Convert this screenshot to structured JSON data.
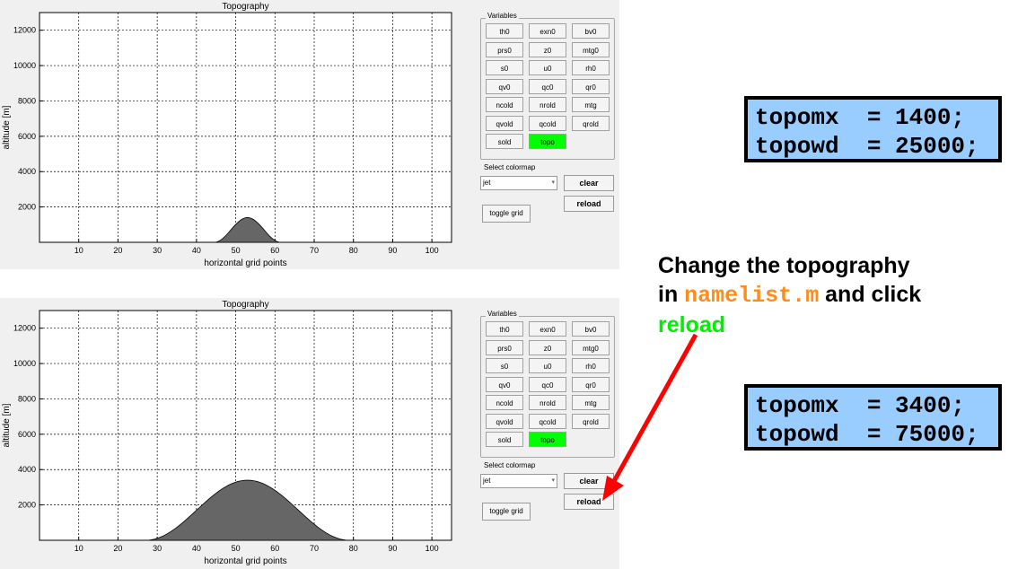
{
  "panels": [
    {
      "id": "before",
      "plot": {
        "title": "Topography",
        "xlabel": "horizontal grid points",
        "ylabel": "altitude [m]",
        "xticks": [
          10,
          20,
          30,
          40,
          50,
          60,
          70,
          80,
          90,
          100
        ],
        "yticks": [
          2000,
          4000,
          6000,
          8000,
          10000,
          12000
        ],
        "grid": true
      },
      "variables_title": "Variables",
      "variables": [
        [
          "th0",
          "exn0",
          "bv0"
        ],
        [
          "prs0",
          "z0",
          "mtg0"
        ],
        [
          "s0",
          "u0",
          "rh0"
        ],
        [
          "qv0",
          "qc0",
          "qr0"
        ],
        [
          "ncold",
          "nrold",
          "mtg"
        ],
        [
          "qvold",
          "qcold",
          "qrold"
        ],
        [
          "sold",
          "topo"
        ]
      ],
      "active_variable": "topo",
      "colormap_label": "Select colormap",
      "colormap_value": "jet",
      "clear_label": "clear",
      "reload_label": "reload",
      "toggle_label": "toggle grid"
    },
    {
      "id": "after",
      "plot": {
        "title": "Topography",
        "xlabel": "horizontal grid points",
        "ylabel": "altitude [m]",
        "xticks": [
          10,
          20,
          30,
          40,
          50,
          60,
          70,
          80,
          90,
          100
        ],
        "yticks": [
          2000,
          4000,
          6000,
          8000,
          10000,
          12000
        ],
        "grid": true
      },
      "variables_title": "Variables",
      "variables": [
        [
          "th0",
          "exn0",
          "bv0"
        ],
        [
          "prs0",
          "z0",
          "mtg0"
        ],
        [
          "s0",
          "u0",
          "rh0"
        ],
        [
          "qv0",
          "qc0",
          "qr0"
        ],
        [
          "ncold",
          "nrold",
          "mtg"
        ],
        [
          "qvold",
          "qcold",
          "qrold"
        ],
        [
          "sold",
          "topo"
        ]
      ],
      "active_variable": "topo",
      "colormap_label": "Select colormap",
      "colormap_value": "jet",
      "clear_label": "clear",
      "reload_label": "reload",
      "toggle_label": "toggle grid"
    }
  ],
  "chart_data": [
    {
      "type": "area",
      "title": "Topography",
      "xlabel": "horizontal grid points",
      "ylabel": "altitude [m]",
      "xlim": [
        0,
        105
      ],
      "ylim": [
        0,
        13000
      ],
      "grid": true,
      "fill_color": "#666666",
      "series": [
        {
          "peak": 1400,
          "center": 53,
          "halfwidth_points": 8.5
        }
      ]
    },
    {
      "type": "area",
      "title": "Topography",
      "xlabel": "horizontal grid points",
      "ylabel": "altitude [m]",
      "xlim": [
        0,
        105
      ],
      "ylim": [
        0,
        13000
      ],
      "grid": true,
      "fill_color": "#666666",
      "series": [
        {
          "peak": 3400,
          "center": 53,
          "halfwidth_points": 26
        }
      ]
    }
  ],
  "code_before": {
    "line1": "topomx  = 1400;",
    "line2": "topowd  = 25000;"
  },
  "code_after": {
    "line1": "topomx  = 3400;",
    "line2": "topowd  = 75000;"
  },
  "annotation": {
    "part1": "Change the topography",
    "part2": "in ",
    "file": "namelist.m",
    "part3": " and click",
    "action": "reload"
  },
  "colors": {
    "active_button": "#00ff00",
    "code_bg": "#99ccff",
    "arrow": "#ff0000",
    "file_color": "#ff8c1a",
    "action_color": "#00ee00"
  }
}
